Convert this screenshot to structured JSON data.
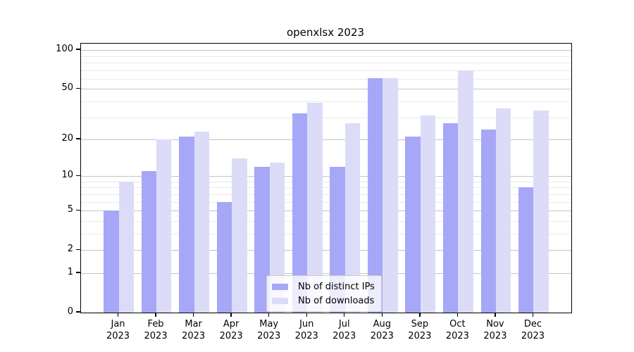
{
  "title": "openxlsx 2023",
  "chart_data": {
    "type": "bar",
    "title": "openxlsx 2023",
    "categories": [
      "Jan",
      "Feb",
      "Mar",
      "Apr",
      "May",
      "Jun",
      "Jul",
      "Aug",
      "Sep",
      "Oct",
      "Nov",
      "Dec"
    ],
    "category_year": "2023",
    "series": [
      {
        "name": "Nb of distinct IPs",
        "color": "#a7a7f7",
        "values": [
          5,
          11,
          21,
          6,
          12,
          32,
          12,
          61,
          21,
          27,
          24,
          8
        ]
      },
      {
        "name": "Nb of downloads",
        "color": "#dcdcf9",
        "values": [
          9,
          20,
          23,
          14,
          13,
          39,
          27,
          61,
          31,
          70,
          35,
          34
        ]
      }
    ],
    "xlabel": "",
    "ylabel": "",
    "y_scale": "log1p",
    "y_axis_ticks": [
      0,
      1,
      2,
      5,
      10,
      20,
      50,
      100
    ],
    "y_minor_gridlines": [
      3,
      4,
      6,
      7,
      8,
      9,
      30,
      40,
      60,
      70,
      80,
      90
    ],
    "ylim_top_approx": 112,
    "grid": true,
    "legend_position": "inside-bottom-center",
    "colors": {
      "major_grid": "#c4c4c4",
      "minor_grid": "#eaeaea",
      "axis": "#000000",
      "background": "#ffffff"
    }
  }
}
